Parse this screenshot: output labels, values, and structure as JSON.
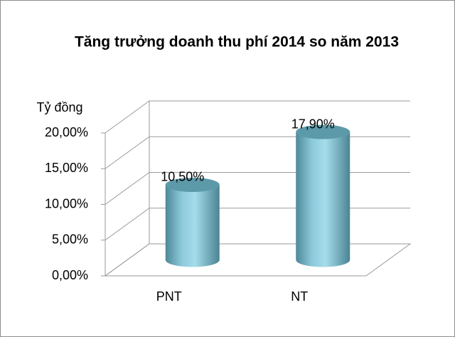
{
  "chart_data": {
    "type": "bar3d",
    "title": "Tăng trưởng doanh thu phí 2014 so năm 2013",
    "y_label": "Tỷ đồng",
    "categories": [
      "PNT",
      "NT"
    ],
    "values": [
      10.5,
      17.9
    ],
    "value_labels": [
      "10,50%",
      "17,90%"
    ],
    "color": "#8ecbdc",
    "ylim": [
      0,
      20
    ],
    "yticks": [
      {
        "value": 0,
        "label": "0,00%"
      },
      {
        "value": 5,
        "label": "5,00%"
      },
      {
        "value": 10,
        "label": "10,00%"
      },
      {
        "value": 15,
        "label": "15,00%"
      },
      {
        "value": 20,
        "label": "20,00%"
      }
    ],
    "grid": true
  }
}
